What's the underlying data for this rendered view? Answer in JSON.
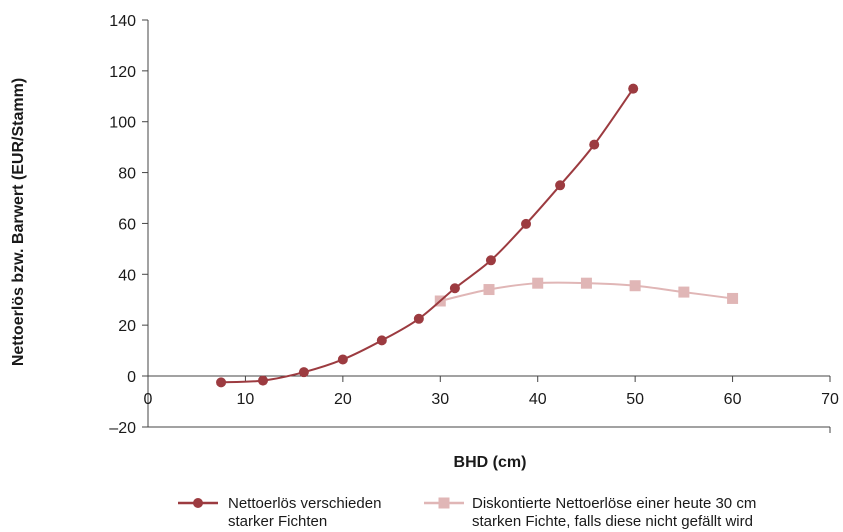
{
  "chart_data": {
    "type": "line",
    "title": "",
    "xlabel": "BHD (cm)",
    "ylabel": "Nettoerlös bzw. Barwert (EUR/Stamm)",
    "xlim": [
      0,
      70
    ],
    "ylim": [
      -20,
      140
    ],
    "xticks": [
      "0",
      "10",
      "20",
      "30",
      "40",
      "50",
      "60",
      "70"
    ],
    "yticks": [
      "–20",
      "0",
      "20",
      "40",
      "60",
      "80",
      "100",
      "120",
      "140"
    ],
    "grid": false,
    "legend_position": "bottom",
    "series": [
      {
        "name": "Nettoerlös verschieden starker Fichten",
        "name_lines": [
          "Nettoerlös verschieden",
          "starker Fichten"
        ],
        "color": "#9c3b40",
        "marker": "circle",
        "x": [
          7.5,
          11.8,
          16,
          20,
          24,
          27.8,
          31.5,
          35.2,
          38.8,
          42.3,
          45.8,
          49.8
        ],
        "y": [
          -2.5,
          -1.8,
          1.5,
          6.5,
          14,
          22.5,
          34.5,
          45.5,
          59.8,
          75,
          91,
          113
        ]
      },
      {
        "name": "Diskontierte Nettoerlöse einer heute 30 cm starken Fichte, falls diese nicht gefällt wird",
        "name_lines": [
          "Diskontierte Nettoerlöse einer heute 30 cm",
          "starken Fichte, falls diese nicht gefällt wird"
        ],
        "color": "#e0b6b6",
        "marker": "square",
        "x": [
          30,
          35,
          40,
          45,
          50,
          55,
          60
        ],
        "y": [
          29.5,
          34,
          36.5,
          36.5,
          35.5,
          33,
          30.5
        ]
      }
    ]
  }
}
